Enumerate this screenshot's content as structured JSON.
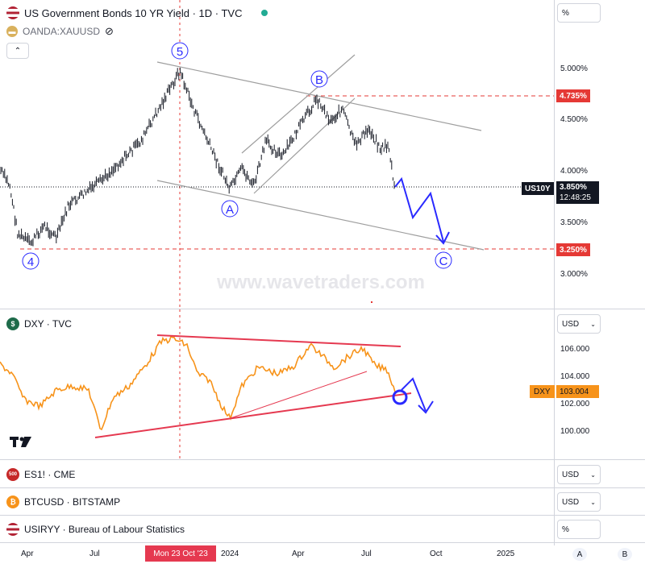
{
  "main_pane": {
    "title": "US Government Bonds 10 YR Yield · 1D · TVC",
    "overlay_symbol": "OANDA:XAUUSD",
    "scale_unit": "%",
    "y_ticks": [
      "5.000%",
      "4.500%",
      "4.000%",
      "3.500%",
      "3.000%"
    ],
    "level_upper": "4.735%",
    "level_lower": "3.250%",
    "current_ticker": "US10Y",
    "current_value": "3.850%",
    "countdown": "12:48:25",
    "watermark": "www.wavetraders.com",
    "wave_labels": {
      "w5": "5",
      "w4": "4",
      "wA": "A",
      "wB": "B",
      "wC": "C"
    },
    "colors": {
      "level_line": "#e53935",
      "channel": "#9e9e9e",
      "wave": "#2a2aff",
      "price": "#131722"
    }
  },
  "dxy_pane": {
    "title": "DXY · TVC",
    "currency": "USD",
    "y_ticks": [
      "106.000",
      "104.000",
      "102.000",
      "100.000"
    ],
    "current_ticker": "DXY",
    "current_value": "103.004",
    "colors": {
      "line": "#f7931a",
      "trendline": "#e53950",
      "marker": "#2a2aff"
    }
  },
  "collapsed_panes": [
    {
      "title": "ES1! · CME",
      "icon_text": "500",
      "icon_color": "#c62828",
      "currency": "USD"
    },
    {
      "title": "BTCUSD · BITSTAMP",
      "icon_text": "₿",
      "icon_color": "#f7931a",
      "currency": "USD"
    },
    {
      "title": "USIRYY · Bureau of Labour Statistics",
      "icon_text": "",
      "icon_color": "#3f51b5",
      "currency": "%"
    }
  ],
  "time_axis": {
    "ticks": [
      "Apr",
      "Jul",
      "2024",
      "Apr",
      "Jul",
      "Oct",
      "2025"
    ],
    "crosshair_label": "Mon 23 Oct '23"
  },
  "scale_buttons": {
    "auto": "A",
    "mode": "B"
  },
  "logo": "TV"
}
